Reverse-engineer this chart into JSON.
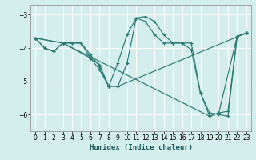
{
  "xlabel": "Humidex (Indice chaleur)",
  "bg_color": "#d4eeee",
  "grid_color": "#ffffff",
  "line_color": "#2a7a72",
  "xlim": [
    -0.5,
    23.5
  ],
  "ylim": [
    -6.5,
    -2.7
  ],
  "yticks": [
    -6,
    -5,
    -4,
    -3
  ],
  "xticks": [
    0,
    1,
    2,
    3,
    4,
    5,
    6,
    7,
    8,
    9,
    10,
    11,
    12,
    13,
    14,
    15,
    16,
    17,
    18,
    19,
    20,
    21,
    22,
    23
  ],
  "lines": [
    {
      "x": [
        0,
        1,
        2,
        3,
        4,
        5,
        6,
        7,
        8,
        9,
        10,
        11,
        12,
        13,
        14,
        15,
        16,
        17,
        18,
        19,
        20,
        21,
        22,
        23
      ],
      "y": [
        -3.7,
        -4.0,
        -4.1,
        -3.85,
        -3.85,
        -3.85,
        -4.2,
        -4.55,
        -5.15,
        -5.15,
        -4.45,
        -3.1,
        -3.05,
        -3.2,
        -3.6,
        -3.85,
        -3.85,
        -3.85,
        -5.35,
        -6.05,
        -5.95,
        -5.9,
        -3.65,
        -3.55
      ]
    },
    {
      "x": [
        0,
        1,
        2,
        3,
        4,
        5,
        6,
        7,
        8,
        9,
        10,
        11,
        12,
        13,
        14,
        15,
        16,
        17,
        18,
        19,
        20,
        21,
        22,
        23
      ],
      "y": [
        -3.7,
        -4.0,
        -4.1,
        -3.85,
        -3.85,
        -3.85,
        -4.3,
        -4.5,
        -5.15,
        -4.45,
        -3.6,
        -3.1,
        -3.2,
        -3.6,
        -3.85,
        -3.85,
        -3.85,
        -4.05,
        -5.35,
        -5.95,
        -6.0,
        -6.05,
        -3.65,
        -3.55
      ]
    },
    {
      "x": [
        0,
        3,
        6,
        7,
        8,
        9,
        23
      ],
      "y": [
        -3.7,
        -3.85,
        -4.3,
        -4.65,
        -5.15,
        -5.15,
        -3.55
      ]
    },
    {
      "x": [
        0,
        3,
        19,
        20,
        22,
        23
      ],
      "y": [
        -3.7,
        -3.85,
        -6.05,
        -5.95,
        -3.65,
        -3.55
      ]
    }
  ]
}
